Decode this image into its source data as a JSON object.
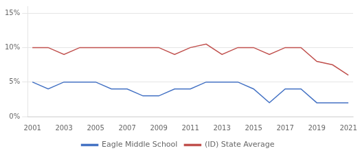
{
  "chart_data": {
    "type": "line",
    "x": [
      2001,
      2002,
      2003,
      2004,
      2005,
      2006,
      2007,
      2008,
      2009,
      2010,
      2011,
      2012,
      2013,
      2014,
      2015,
      2016,
      2017,
      2018,
      2019,
      2020,
      2021
    ],
    "series": [
      {
        "name": "Eagle Middle School",
        "color": "#4472c4",
        "values": [
          0.05,
          0.04,
          0.05,
          0.05,
          0.05,
          0.04,
          0.04,
          0.03,
          0.03,
          0.04,
          0.04,
          0.05,
          0.05,
          0.05,
          0.04,
          0.02,
          0.04,
          0.04,
          0.02,
          0.02,
          0.02
        ]
      },
      {
        "name": "(ID) State Average",
        "color": "#c0504d",
        "values": [
          0.1,
          0.1,
          0.09,
          0.1,
          0.1,
          0.1,
          0.1,
          0.1,
          0.1,
          0.09,
          0.1,
          0.105,
          0.09,
          0.1,
          0.1,
          0.09,
          0.1,
          0.1,
          0.08,
          0.075,
          0.06
        ]
      }
    ],
    "xlim": [
      2000.7,
      2021.3
    ],
    "xticks": [
      2001,
      2003,
      2005,
      2007,
      2009,
      2011,
      2013,
      2015,
      2017,
      2019,
      2021
    ],
    "ylim": [
      0.0,
      0.16
    ],
    "yticks": [
      {
        "value": 0.0,
        "label": "0%"
      },
      {
        "value": 0.05,
        "label": "5%"
      },
      {
        "value": 0.1,
        "label": "10%"
      },
      {
        "value": 0.15,
        "label": "15%"
      }
    ],
    "grid": "y",
    "legend": "bottom"
  }
}
